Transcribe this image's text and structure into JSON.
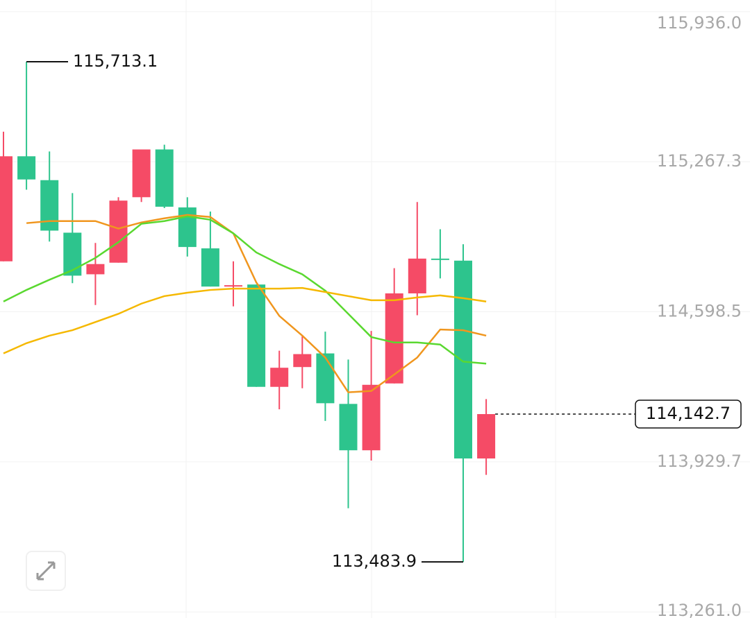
{
  "chart_data": {
    "type": "candlestick",
    "open": [
      114823.5,
      115291.6,
      115185.2,
      114951.1,
      114765.7,
      114817.4,
      115109.2,
      115322.0,
      115063.6,
      114881.2,
      114714.0,
      114720.1,
      114264.1,
      114352.3,
      114413.1,
      114188.1,
      113981.4,
      114279.3,
      114680.6,
      114835.6,
      114826.5,
      113944.9
    ],
    "high": [
      115401.1,
      115713.1,
      115312.9,
      115127.5,
      114905.5,
      115109.2,
      115322.0,
      115343.3,
      115109.2,
      115045.4,
      114823.5,
      114720.1,
      114425.2,
      114489.1,
      114510.3,
      114385.7,
      114513.4,
      114793.1,
      115087.9,
      114966.3,
      114899.5,
      114209.4
    ],
    "low": [
      114823.5,
      115142.7,
      114911.6,
      114726.2,
      114628.9,
      114817.4,
      115087.9,
      115060.6,
      114844.7,
      114711.0,
      114622.8,
      114264.1,
      114163.8,
      114258.0,
      114112.1,
      113723.0,
      113935.8,
      114279.3,
      114583.3,
      114747.5,
      113483.9,
      113871.9
    ],
    "close": [
      115291.6,
      115188.3,
      114960.3,
      114759.6,
      114811.3,
      115094.0,
      115322.0,
      115066.7,
      114887.3,
      114711.0,
      114717.1,
      114264.1,
      114349.2,
      114410.0,
      114191.1,
      113981.4,
      114273.2,
      114680.6,
      114835.6,
      114832.6,
      113944.9,
      114142.7
    ],
    "up_color": "#f54b66",
    "down_color": "#2dc48d",
    "lines": [
      {
        "color": "#f0961e",
        "values": [
          null,
          114993.7,
          115002.8,
          115002.8,
          115002.8,
          114969.4,
          114996.7,
          115015.0,
          115030.2,
          115021.1,
          114948.1,
          114729.2,
          114580.3,
          114492.1,
          114394.8,
          114239.8,
          114245.9,
          114318.8,
          114394.8,
          114519.5,
          114516.4,
          114492.1
        ]
      },
      {
        "color": "#5ad830",
        "values": [
          114644.1,
          114695.8,
          114741.4,
          114783.9,
          114838.7,
          114908.6,
          114990.7,
          115002.8,
          115024.1,
          115008.9,
          114948.1,
          114863.0,
          114811.3,
          114765.7,
          114692.7,
          114589.4,
          114486.0,
          114461.7,
          114461.7,
          114452.6,
          114376.6,
          114367.5
        ]
      },
      {
        "color": "#f5b800",
        "values": [
          114413.1,
          114458.7,
          114492.1,
          114516.4,
          114552.9,
          114589.4,
          114635.0,
          114668.4,
          114683.6,
          114695.8,
          114701.9,
          114701.9,
          114701.9,
          114704.9,
          114686.7,
          114668.4,
          114650.2,
          114650.2,
          114662.3,
          114671.5,
          114659.3,
          114644.1
        ]
      }
    ],
    "ylim": [
      113234,
      115988
    ],
    "yticks": [
      {
        "value": 115936.0,
        "label": "115,936.0"
      },
      {
        "value": 115267.3,
        "label": "115,267.3"
      },
      {
        "value": 114598.5,
        "label": "114,598.5"
      },
      {
        "value": 113929.7,
        "label": "113,929.7"
      },
      {
        "value": 113261.0,
        "label": "113,261.0"
      }
    ],
    "grid": true,
    "high_label": {
      "value": 115713.1,
      "label": "115,713.1"
    },
    "low_label": {
      "value": 113483.9,
      "label": "113,483.9"
    },
    "last_price": {
      "value": 114142.7,
      "label": "114,142.7"
    }
  }
}
